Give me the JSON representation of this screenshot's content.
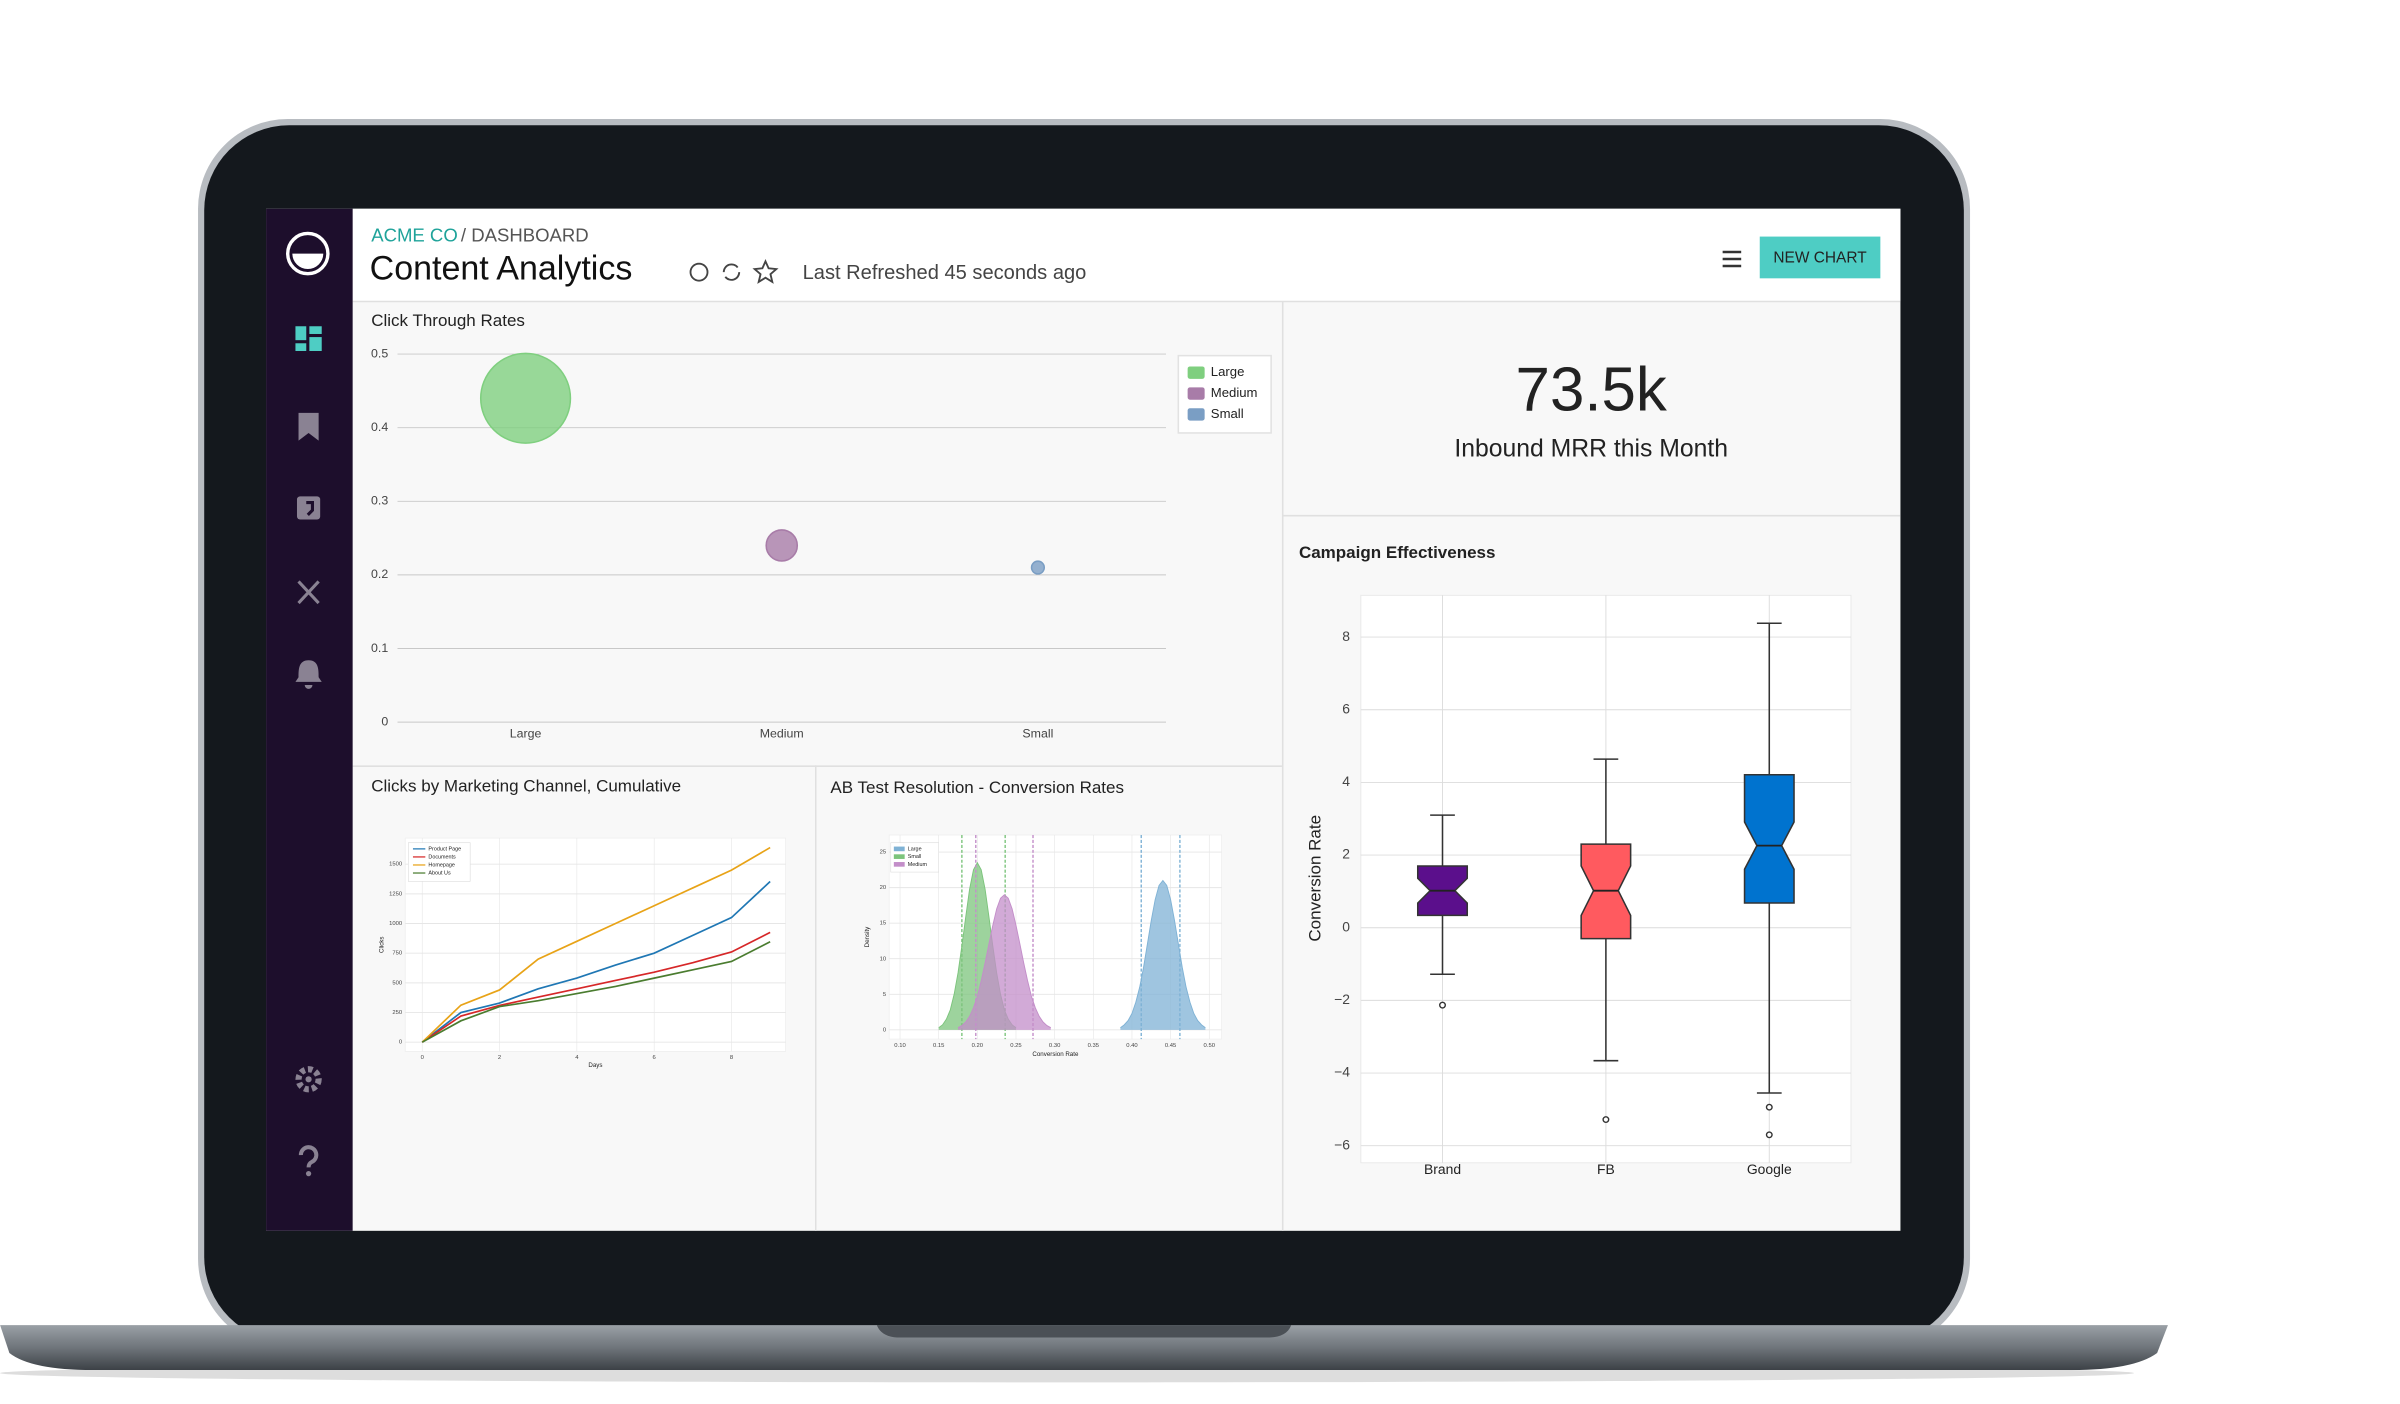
{
  "header": {
    "org": "ACME CO",
    "section": "/ DASHBOARD",
    "title": "Content Analytics",
    "refreshed": "Last Refreshed 45 seconds ago",
    "button": "NEW CHART"
  },
  "kpi": {
    "value": "73.5k",
    "label": "Inbound MRR this Month"
  },
  "chart_data": [
    {
      "type": "bubble",
      "title": "Click Through Rates",
      "categories": [
        "Large",
        "Medium",
        "Small"
      ],
      "values": [
        0.44,
        0.24,
        0.21
      ],
      "sizes": [
        100,
        12,
        2
      ],
      "colors": [
        "#7fcf7f",
        "#a87ca8",
        "#7a9ec4"
      ],
      "ylim": [
        0,
        0.5
      ],
      "yticks": [
        0,
        0.1,
        0.2,
        0.3,
        0.4,
        0.5
      ],
      "grid": true,
      "legend": "top-right"
    },
    {
      "type": "line",
      "title": "Clicks by Marketing Channel, Cumulative",
      "x_label": "Days",
      "y_label": "Clicks",
      "x": [
        0,
        1,
        2,
        3,
        4,
        5,
        6,
        7,
        8,
        9
      ],
      "series": [
        {
          "name": "Product Page",
          "color": "#1f77b4",
          "values": [
            0,
            250,
            330,
            450,
            540,
            650,
            750,
            900,
            1050,
            1354
          ]
        },
        {
          "name": "Documents",
          "color": "#d62728",
          "values": [
            0,
            220,
            310,
            380,
            450,
            520,
            590,
            670,
            760,
            925
          ]
        },
        {
          "name": "Homepage",
          "color": "#e8a317",
          "values": [
            0,
            312,
            440,
            700,
            850,
            1000,
            1150,
            1300,
            1450,
            1640
          ]
        },
        {
          "name": "About Us",
          "color": "#4a7c2f",
          "values": [
            0,
            180,
            300,
            350,
            410,
            470,
            540,
            610,
            680,
            846
          ]
        }
      ],
      "xlim": [
        -0.44,
        9.4
      ],
      "ylim": [
        -78,
        1720
      ],
      "xticks": [
        0,
        2,
        4,
        6,
        8
      ],
      "yticks": [
        0,
        250,
        500,
        750,
        1000,
        1250,
        1500
      ],
      "grid": true,
      "legend": "top-left"
    },
    {
      "type": "density",
      "title": "AB Test Resolution - Conversion Rates",
      "x_label": "Conversion Rate",
      "y_label": "Density",
      "series": [
        {
          "name": "Large",
          "color": "#7fb2d5",
          "interval": [
            0.412,
            0.462
          ],
          "x": [
            0.385,
            0.39,
            0.395,
            0.4,
            0.405,
            0.41,
            0.415,
            0.42,
            0.425,
            0.43,
            0.435,
            0.44,
            0.445,
            0.45,
            0.455,
            0.46,
            0.465,
            0.47,
            0.475,
            0.48,
            0.485,
            0.49,
            0.495
          ],
          "values": [
            0.3,
            0.7,
            1.3,
            2.3,
            3.9,
            6.0,
            8.8,
            12.1,
            15.4,
            18.3,
            20.3,
            21.0,
            20.3,
            18.3,
            15.4,
            12.1,
            8.8,
            6.0,
            3.9,
            2.3,
            1.3,
            0.7,
            0.3
          ]
        },
        {
          "name": "Small",
          "color": "#7cc47c",
          "interval": [
            0.18,
            0.236
          ],
          "x": [
            0.15,
            0.155,
            0.16,
            0.165,
            0.17,
            0.175,
            0.18,
            0.185,
            0.19,
            0.195,
            0.2,
            0.205,
            0.21,
            0.215,
            0.22,
            0.225,
            0.23,
            0.235,
            0.24,
            0.245,
            0.25
          ],
          "values": [
            0.3,
            0.7,
            1.5,
            2.8,
            5.0,
            8.0,
            11.8,
            15.9,
            19.8,
            22.5,
            23.5,
            22.5,
            19.8,
            15.9,
            11.8,
            8.0,
            5.0,
            2.8,
            1.5,
            0.7,
            0.3
          ]
        },
        {
          "name": "Medium",
          "color": "#c38ec9",
          "interval": [
            0.198,
            0.272
          ],
          "x": [
            0.175,
            0.18,
            0.185,
            0.19,
            0.195,
            0.2,
            0.205,
            0.21,
            0.215,
            0.22,
            0.225,
            0.23,
            0.235,
            0.24,
            0.245,
            0.25,
            0.255,
            0.26,
            0.265,
            0.27,
            0.275,
            0.28,
            0.285,
            0.29,
            0.295
          ],
          "values": [
            0.3,
            0.6,
            1.1,
            1.9,
            3.1,
            4.7,
            6.9,
            9.4,
            12.1,
            14.7,
            17.0,
            18.5,
            19.0,
            18.5,
            17.0,
            14.7,
            12.1,
            9.4,
            6.9,
            4.7,
            3.1,
            1.9,
            1.1,
            0.6,
            0.3
          ]
        }
      ],
      "xlim": [
        0.086,
        0.516
      ],
      "ylim": [
        -1.3,
        27.4
      ],
      "xticks": [
        {
          "value": 0.1,
          "label": "0.10"
        },
        0.15,
        {
          "value": 0.2,
          "label": "0.20"
        },
        0.25,
        {
          "value": 0.3,
          "label": "0.30"
        },
        0.35,
        {
          "value": 0.4,
          "label": "0.40"
        },
        0.45,
        {
          "value": 0.5,
          "label": "0.50"
        }
      ],
      "yticks": [
        0,
        5,
        10,
        15,
        20,
        25
      ],
      "grid": true,
      "legend": "top-left"
    },
    {
      "type": "box",
      "title": "Campaign Effectiveness",
      "y_label": "Conversion Rate",
      "categories": [
        "Brand",
        "FB",
        "Google"
      ],
      "colors": [
        "#5b0f8c",
        "#ff5a5f",
        "#0073cf"
      ],
      "boxes": [
        {
          "whislo": -1.28,
          "q1": 0.34,
          "med": 1.02,
          "q3": 1.7,
          "whishi": 3.1,
          "notch": [
            0.68,
            1.36
          ],
          "fliers": [
            -2.13
          ]
        },
        {
          "whislo": -3.66,
          "q1": -0.3,
          "med": 1.02,
          "q3": 2.3,
          "whishi": 4.64,
          "notch": [
            0.34,
            1.7
          ],
          "fliers": [
            -5.28
          ]
        },
        {
          "whislo": -4.55,
          "q1": 0.68,
          "med": 2.26,
          "q3": 4.21,
          "whishi": 8.38,
          "notch": [
            1.61,
            2.91
          ],
          "fliers": [
            -4.94,
            -5.7
          ]
        }
      ],
      "ylim": [
        -6.47,
        9.15
      ],
      "yticks": [
        {
          "value": -6,
          "label": "−6"
        },
        {
          "value": -4,
          "label": "−4"
        },
        {
          "value": -2,
          "label": "−2"
        },
        0,
        2,
        4,
        6,
        8
      ],
      "grid": true
    }
  ]
}
